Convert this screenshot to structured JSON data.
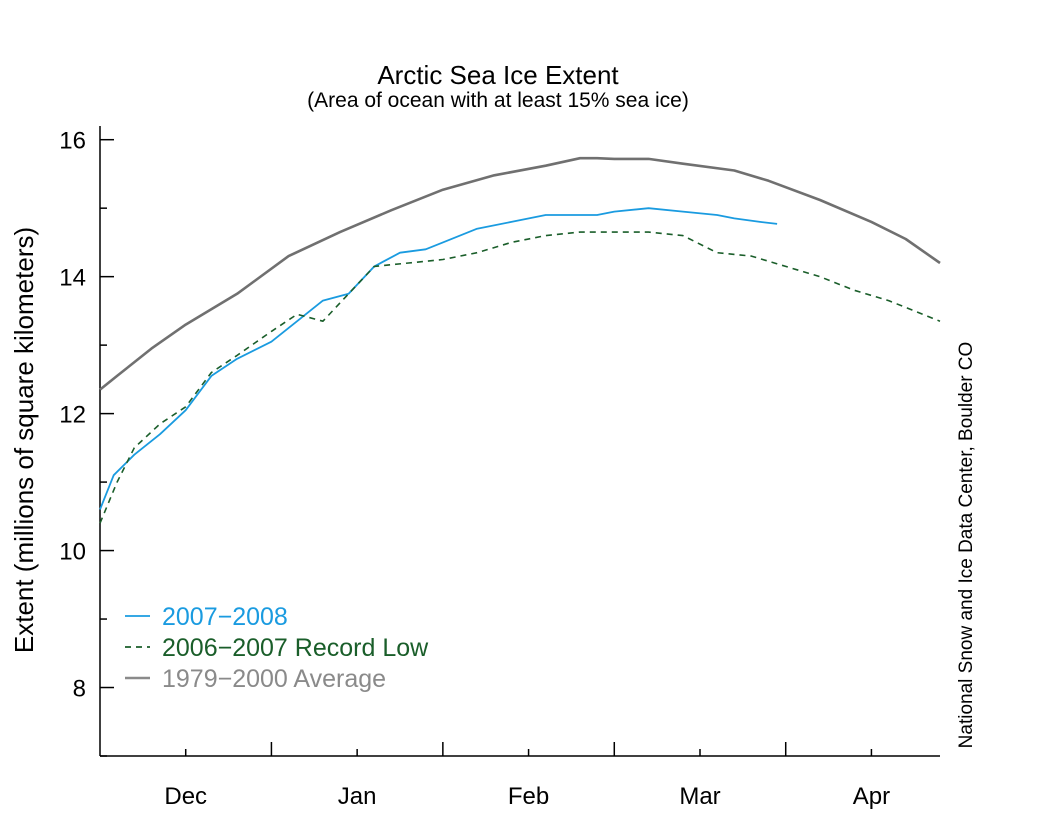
{
  "chart_data": {
    "type": "line",
    "title": "Arctic Sea Ice Extent",
    "subtitle": "(Area of ocean with at least 15% sea ice)",
    "ylabel": "Extent (millions of square kilometers)",
    "xlabel": "",
    "credit": "National Snow and Ice Data Center, Boulder CO",
    "ylim": [
      7,
      16.2
    ],
    "yticks": [
      8,
      10,
      12,
      14,
      16
    ],
    "xlim": [
      0,
      4.9
    ],
    "months": [
      {
        "label": "Dec",
        "pos": 0.5
      },
      {
        "label": "Jan",
        "pos": 1.5
      },
      {
        "label": "Feb",
        "pos": 2.5
      },
      {
        "label": "Mar",
        "pos": 3.5
      },
      {
        "label": "Apr",
        "pos": 4.5
      }
    ],
    "series": [
      {
        "name": "1979−2000 Average",
        "color": "#707070",
        "style": "solid",
        "x": [
          0,
          0.1,
          0.3,
          0.5,
          0.8,
          1.1,
          1.4,
          1.7,
          2.0,
          2.3,
          2.6,
          2.8,
          2.9,
          3.0,
          3.2,
          3.4,
          3.7,
          3.9,
          4.2,
          4.5,
          4.7,
          4.9
        ],
        "y": [
          12.35,
          12.55,
          12.95,
          13.3,
          13.75,
          14.3,
          14.65,
          14.97,
          15.27,
          15.48,
          15.62,
          15.73,
          15.73,
          15.72,
          15.72,
          15.65,
          15.55,
          15.4,
          15.12,
          14.8,
          14.55,
          14.2
        ]
      },
      {
        "name": "2007−2008",
        "color": "#1a9be0",
        "style": "solid",
        "x": [
          0,
          0.08,
          0.2,
          0.35,
          0.5,
          0.65,
          0.8,
          1.0,
          1.15,
          1.3,
          1.45,
          1.6,
          1.75,
          1.9,
          2.0,
          2.2,
          2.4,
          2.6,
          2.8,
          2.9,
          3.0,
          3.2,
          3.4,
          3.6,
          3.7,
          3.85,
          3.95
        ],
        "y": [
          10.6,
          11.1,
          11.4,
          11.7,
          12.05,
          12.55,
          12.8,
          13.05,
          13.35,
          13.65,
          13.75,
          14.15,
          14.35,
          14.4,
          14.5,
          14.7,
          14.8,
          14.9,
          14.9,
          14.9,
          14.95,
          15.0,
          14.95,
          14.9,
          14.85,
          14.8,
          14.77
        ]
      },
      {
        "name": "2006−2007 Record Low",
        "color": "#1a5e2a",
        "style": "dashed",
        "x": [
          0,
          0.1,
          0.2,
          0.35,
          0.5,
          0.65,
          0.8,
          1.0,
          1.15,
          1.3,
          1.45,
          1.6,
          1.8,
          2.0,
          2.2,
          2.4,
          2.6,
          2.8,
          3.0,
          3.2,
          3.4,
          3.6,
          3.8,
          4.0,
          4.2,
          4.4,
          4.6,
          4.75,
          4.9
        ],
        "y": [
          10.4,
          11.0,
          11.5,
          11.85,
          12.1,
          12.6,
          12.85,
          13.2,
          13.45,
          13.35,
          13.75,
          14.15,
          14.2,
          14.25,
          14.35,
          14.5,
          14.6,
          14.65,
          14.65,
          14.65,
          14.6,
          14.35,
          14.3,
          14.15,
          14.0,
          13.8,
          13.65,
          13.5,
          13.35
        ]
      }
    ],
    "legend": [
      {
        "label": "2007−2008",
        "color": "#1a9be0",
        "style": "solid"
      },
      {
        "label": "2006−2007 Record Low",
        "color": "#1a5e2a",
        "style": "dashed"
      },
      {
        "label": "1979−2000 Average",
        "color": "#8a8a8a",
        "style": "solid"
      }
    ],
    "legend_position": "lower-left"
  }
}
